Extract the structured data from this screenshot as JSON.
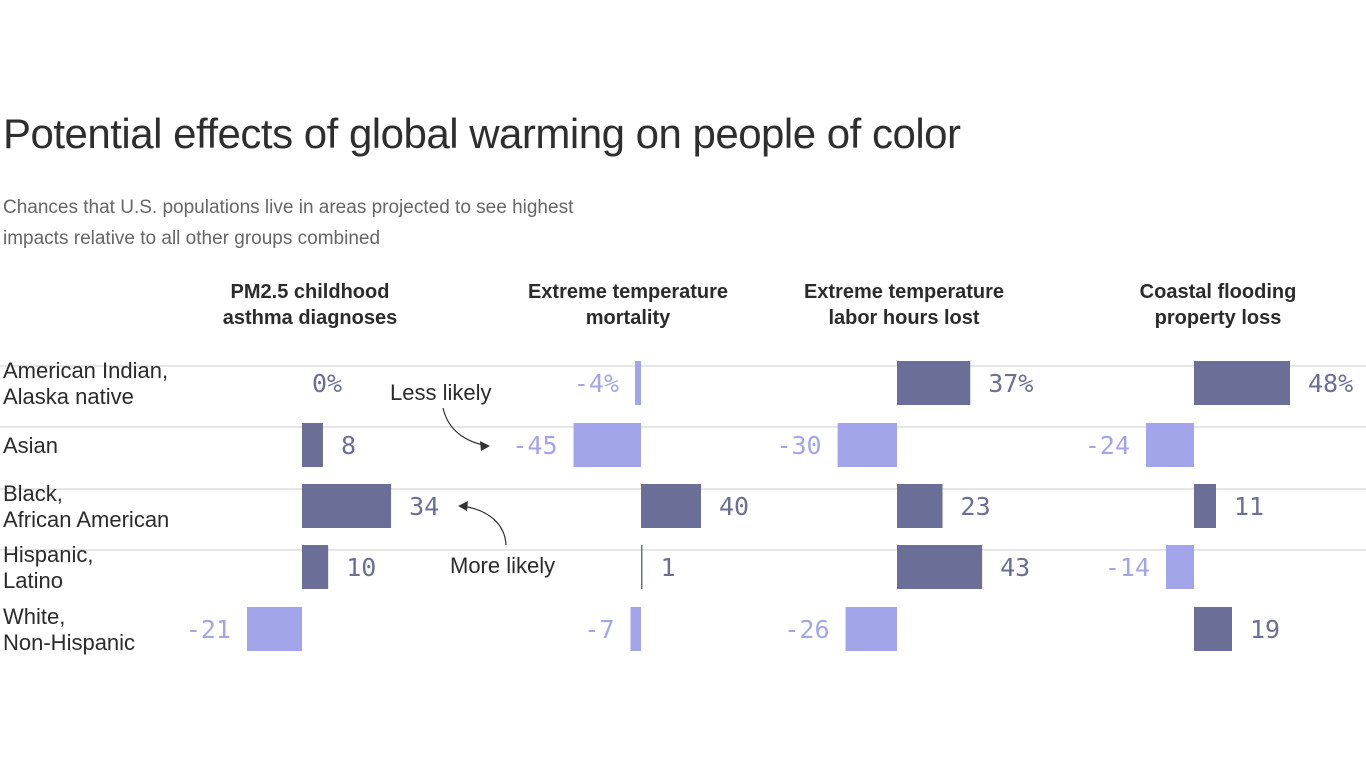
{
  "chart_data": {
    "type": "bar",
    "orientation": "horizontal",
    "layout": "small-multiples",
    "title": "Potential effects of global warming on people of color",
    "subtitle": "Chances that U.S. populations live in areas projected to see highest impacts relative to all other groups combined",
    "unit": "%",
    "categories": [
      [
        "American Indian,",
        "Alaska native"
      ],
      [
        "Asian"
      ],
      [
        "Black,",
        "African American"
      ],
      [
        "Hispanic,",
        "Latino"
      ],
      [
        "White,",
        "Non-Hispanic"
      ]
    ],
    "series": [
      {
        "name": [
          "PM2.5 childhood",
          "asthma diagnoses"
        ],
        "values": [
          0,
          8,
          34,
          10,
          -21
        ]
      },
      {
        "name": [
          "Extreme temperature",
          "mortality"
        ],
        "values": [
          -4,
          -45,
          40,
          1,
          -7
        ]
      },
      {
        "name": [
          "Extreme temperature",
          "labor hours lost"
        ],
        "values": [
          37,
          -30,
          23,
          43,
          -26
        ]
      },
      {
        "name": [
          "Coastal flooding",
          "property loss"
        ],
        "values": [
          48,
          -24,
          11,
          -14,
          19
        ]
      }
    ],
    "annotations": [
      {
        "text": "Less likely",
        "points_to": "Asian, Extreme temperature mortality (-45)"
      },
      {
        "text": "More likely",
        "points_to": "Black, African American, PM2.5 childhood asthma diagnoses (34)"
      }
    ],
    "colors": {
      "positive": "#6b6e96",
      "negative": "#a3a5ea",
      "gridline": "#dddddd"
    },
    "grid": false
  }
}
